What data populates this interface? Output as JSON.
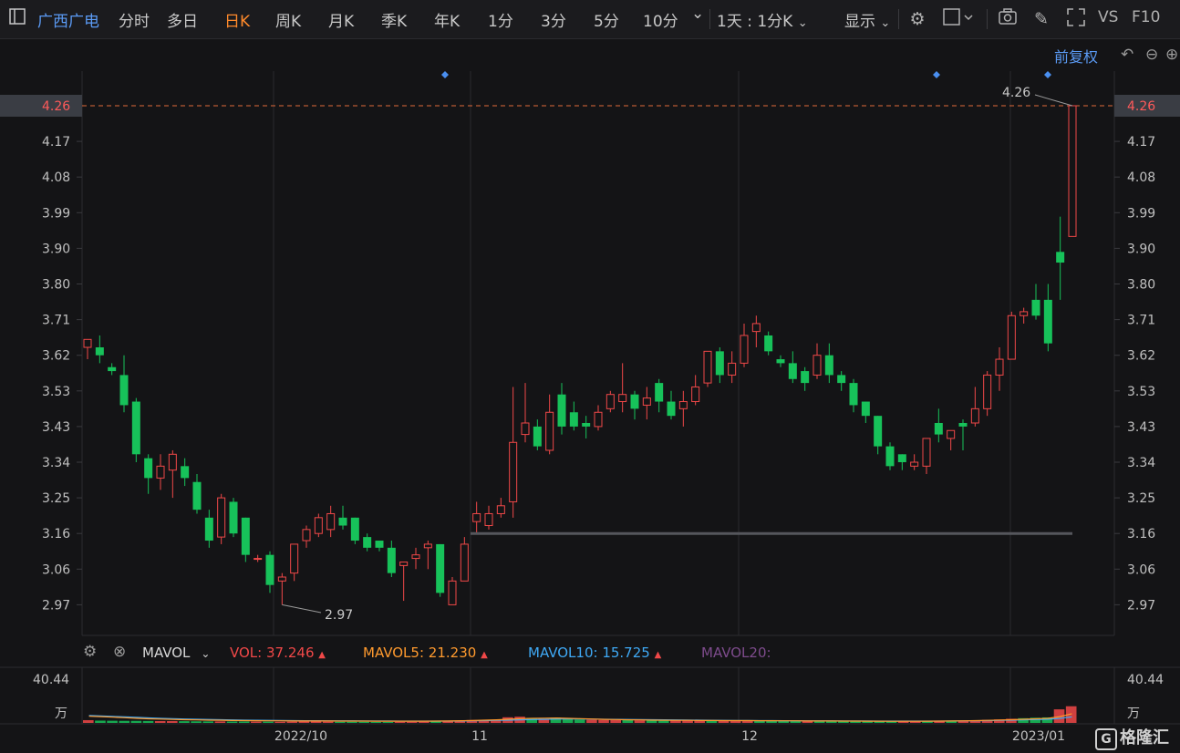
{
  "toolbar": {
    "stock_name": "广西广电",
    "tabs": [
      "分时",
      "多日",
      "日K",
      "周K",
      "月K",
      "季K",
      "年K",
      "1分",
      "3分",
      "5分",
      "10分"
    ],
    "active_tab": "日K",
    "more_arrow": "⌄",
    "period_select": "1天 : 1分K",
    "display_label": "显示",
    "vs_label": "VS",
    "f10_label": "F10",
    "icons": [
      "sidebar-toggle-icon",
      "gear-icon",
      "rectangle-icon",
      "camera-icon",
      "pencil-icon",
      "fullscreen-icon"
    ]
  },
  "adjust_label": "前复权",
  "price_axis": {
    "ticks": [
      "4.26",
      "4.17",
      "4.08",
      "3.99",
      "3.90",
      "3.80",
      "3.71",
      "3.62",
      "3.53",
      "3.43",
      "3.34",
      "3.25",
      "3.16",
      "3.06",
      "2.97"
    ],
    "current_price": "4.26"
  },
  "annotations": {
    "high_label": "4.26",
    "low_label": "2.97"
  },
  "volume_panel": {
    "indicator": "MAVOL",
    "vol_label": "VOL:",
    "vol_value": "37.246",
    "mavol5_label": "MAVOL5:",
    "mavol5_value": "21.230",
    "mavol10_label": "MAVOL10:",
    "mavol10_value": "15.725",
    "mavol20_label": "MAVOL20:",
    "up_arrow": "▲",
    "axis_top": "40.44",
    "axis_unit": "万"
  },
  "x_axis": {
    "labels": [
      "2022/10",
      "11",
      "12",
      "2023/01"
    ]
  },
  "watermark": "格隆汇",
  "colors": {
    "up": "#f04848",
    "down": "#17c25a",
    "ma5": "#ff9a2e",
    "ma10": "#3fa9f5",
    "ma20": "#9b59b6",
    "grid": "#2a2a2e",
    "support": "#55565c"
  },
  "chart_data": {
    "type": "candlestick",
    "y_range": [
      2.94,
      4.26
    ],
    "support_level": 3.16,
    "candles": [
      {
        "o": 3.64,
        "h": 3.66,
        "l": 3.61,
        "c": 3.66
      },
      {
        "o": 3.64,
        "h": 3.67,
        "l": 3.6,
        "c": 3.62
      },
      {
        "o": 3.59,
        "h": 3.6,
        "l": 3.57,
        "c": 3.58
      },
      {
        "o": 3.57,
        "h": 3.62,
        "l": 3.47,
        "c": 3.49
      },
      {
        "o": 3.5,
        "h": 3.51,
        "l": 3.34,
        "c": 3.36
      },
      {
        "o": 3.35,
        "h": 3.36,
        "l": 3.26,
        "c": 3.3
      },
      {
        "o": 3.3,
        "h": 3.36,
        "l": 3.27,
        "c": 3.33
      },
      {
        "o": 3.32,
        "h": 3.37,
        "l": 3.25,
        "c": 3.36
      },
      {
        "o": 3.33,
        "h": 3.35,
        "l": 3.28,
        "c": 3.3
      },
      {
        "o": 3.29,
        "h": 3.31,
        "l": 3.21,
        "c": 3.22
      },
      {
        "o": 3.2,
        "h": 3.22,
        "l": 3.12,
        "c": 3.14
      },
      {
        "o": 3.15,
        "h": 3.26,
        "l": 3.13,
        "c": 3.25
      },
      {
        "o": 3.24,
        "h": 3.25,
        "l": 3.15,
        "c": 3.16
      },
      {
        "o": 3.2,
        "h": 3.2,
        "l": 3.08,
        "c": 3.1
      },
      {
        "o": 3.09,
        "h": 3.1,
        "l": 3.08,
        "c": 3.09
      },
      {
        "o": 3.1,
        "h": 3.11,
        "l": 3.0,
        "c": 3.02
      },
      {
        "o": 3.03,
        "h": 3.05,
        "l": 2.97,
        "c": 3.04
      },
      {
        "o": 3.05,
        "h": 3.13,
        "l": 3.03,
        "c": 3.13
      },
      {
        "o": 3.14,
        "h": 3.18,
        "l": 3.12,
        "c": 3.17
      },
      {
        "o": 3.16,
        "h": 3.21,
        "l": 3.15,
        "c": 3.2
      },
      {
        "o": 3.17,
        "h": 3.23,
        "l": 3.15,
        "c": 3.21
      },
      {
        "o": 3.2,
        "h": 3.23,
        "l": 3.17,
        "c": 3.18
      },
      {
        "o": 3.2,
        "h": 3.2,
        "l": 3.13,
        "c": 3.14
      },
      {
        "o": 3.15,
        "h": 3.16,
        "l": 3.11,
        "c": 3.12
      },
      {
        "o": 3.14,
        "h": 3.14,
        "l": 3.11,
        "c": 3.12
      },
      {
        "o": 3.12,
        "h": 3.14,
        "l": 3.04,
        "c": 3.05
      },
      {
        "o": 3.07,
        "h": 3.08,
        "l": 2.98,
        "c": 3.08
      },
      {
        "o": 3.09,
        "h": 3.12,
        "l": 3.06,
        "c": 3.1
      },
      {
        "o": 3.12,
        "h": 3.14,
        "l": 3.06,
        "c": 3.13
      },
      {
        "o": 3.13,
        "h": 3.13,
        "l": 2.99,
        "c": 3.0
      },
      {
        "o": 2.97,
        "h": 3.04,
        "l": 2.97,
        "c": 3.03
      },
      {
        "o": 3.03,
        "h": 3.15,
        "l": 3.03,
        "c": 3.13
      },
      {
        "o": 3.19,
        "h": 3.24,
        "l": 3.16,
        "c": 3.21
      },
      {
        "o": 3.18,
        "h": 3.23,
        "l": 3.17,
        "c": 3.21
      },
      {
        "o": 3.21,
        "h": 3.25,
        "l": 3.2,
        "c": 3.23
      },
      {
        "o": 3.24,
        "h": 3.54,
        "l": 3.2,
        "c": 3.39
      },
      {
        "o": 3.41,
        "h": 3.55,
        "l": 3.39,
        "c": 3.44
      },
      {
        "o": 3.43,
        "h": 3.45,
        "l": 3.37,
        "c": 3.38
      },
      {
        "o": 3.37,
        "h": 3.52,
        "l": 3.36,
        "c": 3.47
      },
      {
        "o": 3.52,
        "h": 3.55,
        "l": 3.41,
        "c": 3.43
      },
      {
        "o": 3.47,
        "h": 3.5,
        "l": 3.42,
        "c": 3.43
      },
      {
        "o": 3.44,
        "h": 3.46,
        "l": 3.4,
        "c": 3.43
      },
      {
        "o": 3.43,
        "h": 3.49,
        "l": 3.42,
        "c": 3.47
      },
      {
        "o": 3.48,
        "h": 3.53,
        "l": 3.47,
        "c": 3.52
      },
      {
        "o": 3.5,
        "h": 3.6,
        "l": 3.47,
        "c": 3.52
      },
      {
        "o": 3.52,
        "h": 3.53,
        "l": 3.45,
        "c": 3.48
      },
      {
        "o": 3.49,
        "h": 3.54,
        "l": 3.45,
        "c": 3.51
      },
      {
        "o": 3.55,
        "h": 3.56,
        "l": 3.47,
        "c": 3.5
      },
      {
        "o": 3.5,
        "h": 3.53,
        "l": 3.45,
        "c": 3.46
      },
      {
        "o": 3.48,
        "h": 3.53,
        "l": 3.43,
        "c": 3.5
      },
      {
        "o": 3.5,
        "h": 3.57,
        "l": 3.49,
        "c": 3.54
      },
      {
        "o": 3.55,
        "h": 3.63,
        "l": 3.54,
        "c": 3.63
      },
      {
        "o": 3.63,
        "h": 3.64,
        "l": 3.55,
        "c": 3.57
      },
      {
        "o": 3.57,
        "h": 3.63,
        "l": 3.55,
        "c": 3.6
      },
      {
        "o": 3.6,
        "h": 3.7,
        "l": 3.59,
        "c": 3.67
      },
      {
        "o": 3.68,
        "h": 3.72,
        "l": 3.64,
        "c": 3.7
      },
      {
        "o": 3.67,
        "h": 3.68,
        "l": 3.62,
        "c": 3.63
      },
      {
        "o": 3.61,
        "h": 3.62,
        "l": 3.59,
        "c": 3.6
      },
      {
        "o": 3.6,
        "h": 3.63,
        "l": 3.55,
        "c": 3.56
      },
      {
        "o": 3.58,
        "h": 3.59,
        "l": 3.53,
        "c": 3.55
      },
      {
        "o": 3.57,
        "h": 3.65,
        "l": 3.56,
        "c": 3.62
      },
      {
        "o": 3.62,
        "h": 3.65,
        "l": 3.55,
        "c": 3.57
      },
      {
        "o": 3.57,
        "h": 3.58,
        "l": 3.53,
        "c": 3.55
      },
      {
        "o": 3.55,
        "h": 3.56,
        "l": 3.47,
        "c": 3.49
      },
      {
        "o": 3.5,
        "h": 3.5,
        "l": 3.44,
        "c": 3.46
      },
      {
        "o": 3.46,
        "h": 3.46,
        "l": 3.36,
        "c": 3.38
      },
      {
        "o": 3.38,
        "h": 3.39,
        "l": 3.32,
        "c": 3.33
      },
      {
        "o": 3.36,
        "h": 3.36,
        "l": 3.32,
        "c": 3.34
      },
      {
        "o": 3.33,
        "h": 3.36,
        "l": 3.32,
        "c": 3.34
      },
      {
        "o": 3.33,
        "h": 3.4,
        "l": 3.31,
        "c": 3.4
      },
      {
        "o": 3.44,
        "h": 3.48,
        "l": 3.39,
        "c": 3.41
      },
      {
        "o": 3.4,
        "h": 3.41,
        "l": 3.37,
        "c": 3.42
      },
      {
        "o": 3.44,
        "h": 3.45,
        "l": 3.37,
        "c": 3.43
      },
      {
        "o": 3.44,
        "h": 3.54,
        "l": 3.43,
        "c": 3.48
      },
      {
        "o": 3.48,
        "h": 3.58,
        "l": 3.46,
        "c": 3.57
      },
      {
        "o": 3.57,
        "h": 3.64,
        "l": 3.53,
        "c": 3.61
      },
      {
        "o": 3.61,
        "h": 3.73,
        "l": 3.61,
        "c": 3.72
      },
      {
        "o": 3.72,
        "h": 3.74,
        "l": 3.7,
        "c": 3.73
      },
      {
        "o": 3.76,
        "h": 3.8,
        "l": 3.71,
        "c": 3.72
      },
      {
        "o": 3.76,
        "h": 3.8,
        "l": 3.63,
        "c": 3.65
      },
      {
        "o": 3.89,
        "h": 3.98,
        "l": 3.76,
        "c": 3.86
      },
      {
        "o": 3.93,
        "h": 4.26,
        "l": 3.93,
        "c": 4.26
      }
    ],
    "ma_price": [],
    "volume": {
      "bars": [
        2.4,
        2.0,
        1.9,
        1.8,
        1.8,
        1.7,
        1.6,
        1.6,
        1.5,
        1.4,
        1.3,
        1.3,
        1.2,
        1.2,
        1.1,
        1.1,
        1.0,
        1.1,
        1.2,
        1.2,
        1.1,
        1.0,
        1.0,
        1.0,
        0.9,
        0.9,
        1.0,
        1.0,
        1.1,
        1.2,
        1.3,
        1.8,
        2.5,
        2.6,
        2.4,
        4.9,
        5.4,
        4.2,
        3.6,
        4.6,
        3.3,
        2.9,
        2.7,
        2.6,
        2.5,
        2.4,
        2.2,
        2.0,
        1.9,
        2.0,
        2.1,
        2.2,
        2.0,
        1.9,
        2.0,
        2.1,
        1.8,
        1.7,
        1.6,
        1.7,
        1.8,
        1.7,
        1.6,
        1.5,
        1.5,
        1.4,
        1.4,
        1.3,
        1.3,
        1.4,
        1.6,
        1.7,
        1.8,
        2.0,
        2.3,
        2.6,
        3.0,
        3.6,
        4.1,
        4.5,
        4.8,
        11.8,
        14.5
      ],
      "ma5": [
        5.8,
        5.5,
        5.0,
        4.5,
        4.0,
        3.6,
        3.3,
        3.0,
        2.8,
        2.6,
        2.4,
        2.3,
        2.1,
        2.0,
        1.9,
        1.8,
        1.8,
        1.7,
        1.7,
        1.7,
        1.7,
        1.6,
        1.6,
        1.6,
        1.5,
        1.5,
        1.5,
        1.5,
        1.5,
        1.6,
        1.7,
        1.9,
        2.1,
        2.4,
        2.7,
        3.2,
        3.7,
        4.0,
        4.1,
        4.3,
        4.0,
        3.7,
        3.4,
        3.1,
        2.9,
        2.7,
        2.6,
        2.4,
        2.3,
        2.2,
        2.2,
        2.1,
        2.1,
        2.0,
        2.0,
        2.0,
        1.9,
        1.9,
        1.8,
        1.8,
        1.7,
        1.7,
        1.7,
        1.6,
        1.6,
        1.5,
        1.5,
        1.4,
        1.4,
        1.4,
        1.5,
        1.6,
        1.7,
        1.8,
        2.0,
        2.2,
        2.5,
        2.8,
        3.2,
        3.6,
        4.0,
        5.5,
        8.0
      ],
      "ma10": [
        6.4,
        6.0,
        5.6,
        5.2,
        4.8,
        4.4,
        4.0,
        3.7,
        3.4,
        3.2,
        3.0,
        2.8,
        2.6,
        2.4,
        2.3,
        2.2,
        2.1,
        2.0,
        1.9,
        1.9,
        1.8,
        1.8,
        1.8,
        1.7,
        1.7,
        1.7,
        1.6,
        1.6,
        1.6,
        1.6,
        1.6,
        1.7,
        1.8,
        2.0,
        2.2,
        2.4,
        2.7,
        2.9,
        3.1,
        3.3,
        3.4,
        3.4,
        3.3,
        3.2,
        3.1,
        3.0,
        2.9,
        2.8,
        2.7,
        2.6,
        2.5,
        2.4,
        2.3,
        2.2,
        2.1,
        2.1,
        2.0,
        2.0,
        1.9,
        1.9,
        1.8,
        1.8,
        1.8,
        1.7,
        1.7,
        1.7,
        1.6,
        1.6,
        1.6,
        1.6,
        1.6,
        1.6,
        1.7,
        1.8,
        1.9,
        2.0,
        2.2,
        2.4,
        2.6,
        2.9,
        3.2,
        4.0,
        5.2
      ]
    }
  }
}
